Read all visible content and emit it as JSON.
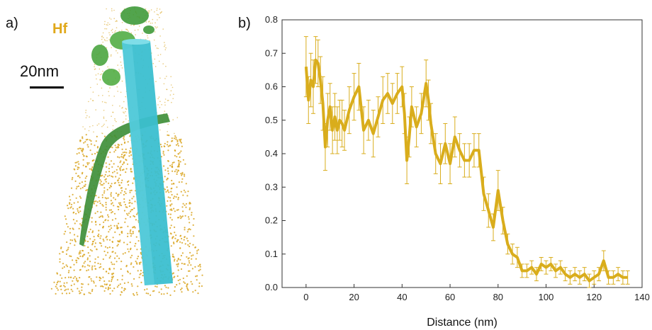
{
  "panel_a": {
    "label": "a)",
    "element_label": "Hf",
    "scale_label": "20nm",
    "colors": {
      "points": "#d9a520",
      "rod": "#3bbfd0",
      "clusters": "#3f9a3a"
    }
  },
  "panel_b": {
    "label": "b)"
  },
  "chart_data": {
    "type": "line",
    "xlabel": "Distance (nm)",
    "ylabel": "",
    "xlim": [
      -10,
      140
    ],
    "ylim": [
      0,
      0.8
    ],
    "x_ticks": [
      0,
      20,
      40,
      60,
      80,
      100,
      120,
      140
    ],
    "y_ticks": [
      0.0,
      0.1,
      0.2,
      0.3,
      0.4,
      0.5,
      0.6,
      0.7,
      0.8
    ],
    "color": "#d9ad1c",
    "series": [
      {
        "x": [
          0,
          1,
          2,
          3,
          4,
          5,
          6,
          7,
          8,
          9,
          10,
          11,
          12,
          13,
          14,
          15,
          16,
          18,
          20,
          22,
          24,
          26,
          28,
          30,
          32,
          34,
          36,
          38,
          40,
          41,
          42,
          43,
          44,
          46,
          48,
          50,
          51,
          52,
          54,
          56,
          58,
          60,
          62,
          64,
          66,
          68,
          70,
          72,
          74,
          76,
          78,
          80,
          82,
          84,
          86,
          88,
          90,
          92,
          94,
          96,
          98,
          100,
          102,
          104,
          106,
          108,
          110,
          112,
          114,
          116,
          118,
          120,
          122,
          124,
          126,
          128,
          130,
          132,
          134
        ],
        "y": [
          0.66,
          0.56,
          0.62,
          0.6,
          0.68,
          0.67,
          0.62,
          0.55,
          0.42,
          0.5,
          0.54,
          0.47,
          0.51,
          0.47,
          0.5,
          0.49,
          0.47,
          0.53,
          0.57,
          0.6,
          0.47,
          0.5,
          0.46,
          0.51,
          0.56,
          0.58,
          0.55,
          0.58,
          0.6,
          0.52,
          0.38,
          0.45,
          0.54,
          0.48,
          0.52,
          0.61,
          0.56,
          0.49,
          0.4,
          0.37,
          0.43,
          0.37,
          0.45,
          0.41,
          0.38,
          0.38,
          0.41,
          0.41,
          0.28,
          0.23,
          0.18,
          0.29,
          0.2,
          0.13,
          0.1,
          0.09,
          0.05,
          0.05,
          0.06,
          0.04,
          0.07,
          0.06,
          0.07,
          0.05,
          0.06,
          0.04,
          0.03,
          0.04,
          0.03,
          0.04,
          0.02,
          0.03,
          0.04,
          0.08,
          0.03,
          0.03,
          0.04,
          0.03,
          0.03
        ],
        "err": [
          0.09,
          0.07,
          0.08,
          0.08,
          0.07,
          0.07,
          0.07,
          0.08,
          0.07,
          0.08,
          0.07,
          0.07,
          0.07,
          0.07,
          0.06,
          0.07,
          0.06,
          0.07,
          0.07,
          0.07,
          0.07,
          0.06,
          0.07,
          0.06,
          0.07,
          0.06,
          0.06,
          0.06,
          0.06,
          0.06,
          0.07,
          0.06,
          0.06,
          0.06,
          0.06,
          0.07,
          0.06,
          0.06,
          0.06,
          0.06,
          0.06,
          0.06,
          0.06,
          0.05,
          0.05,
          0.05,
          0.05,
          0.05,
          0.05,
          0.05,
          0.04,
          0.06,
          0.04,
          0.03,
          0.03,
          0.03,
          0.02,
          0.02,
          0.02,
          0.02,
          0.02,
          0.02,
          0.02,
          0.02,
          0.02,
          0.02,
          0.02,
          0.02,
          0.02,
          0.02,
          0.02,
          0.02,
          0.02,
          0.03,
          0.02,
          0.02,
          0.02,
          0.02,
          0.02
        ]
      }
    ]
  }
}
